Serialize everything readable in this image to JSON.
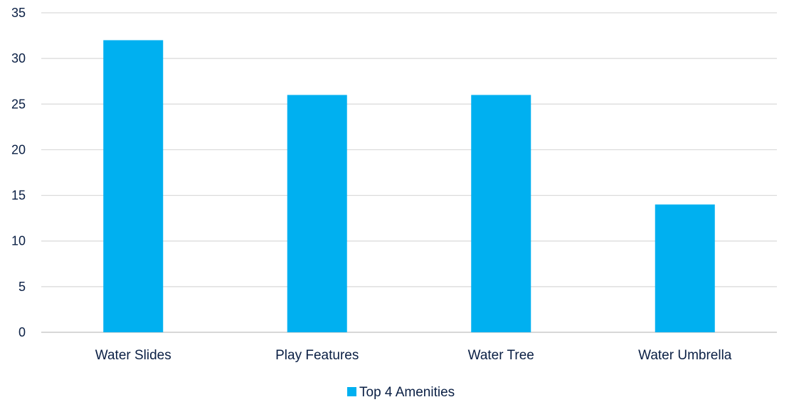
{
  "chart_data": {
    "type": "bar",
    "categories": [
      "Water Slides",
      "Play Features",
      "Water Tree",
      "Water Umbrella"
    ],
    "series": [
      {
        "name": "Top 4 Amenities",
        "values": [
          32,
          26,
          26,
          14
        ],
        "color": "#00b0f0"
      }
    ],
    "title": "",
    "xlabel": "",
    "ylabel": "",
    "ylim": [
      0,
      35
    ],
    "yticks": [
      0,
      5,
      10,
      15,
      20,
      25,
      30,
      35
    ],
    "grid": true,
    "legend_position": "bottom-center"
  }
}
